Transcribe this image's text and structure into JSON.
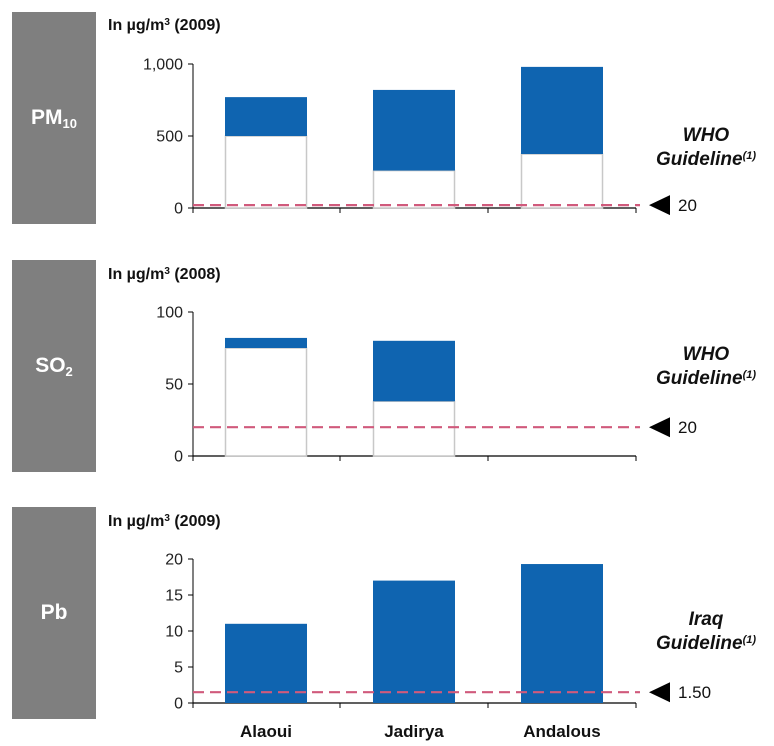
{
  "colors": {
    "bar": "#0f64b0",
    "ghost_outline": "#c8c8c8",
    "guideline": "#d05a7c",
    "side_box": "#7f7f7f",
    "axis": "#000000"
  },
  "chart_data": [
    {
      "type": "bar",
      "pollutant_main": "PM",
      "pollutant_sub": "10",
      "unit_prefix": "In µg/m",
      "unit_power": "3",
      "unit_year": " (2009)",
      "categories": [
        "Alaoui",
        "Jadirya",
        "Andalous"
      ],
      "ylim": [
        0,
        1000
      ],
      "yticks": [
        0,
        500,
        1000
      ],
      "ytick_labels": [
        "0",
        "500",
        "1,000"
      ],
      "ranges": [
        [
          500,
          770
        ],
        [
          260,
          820
        ],
        [
          375,
          980
        ]
      ],
      "guideline_value": 20,
      "guideline_label": "20",
      "guideline_title_line1": "WHO",
      "guideline_title_line2": "Guideline",
      "guideline_note": "(1)",
      "show_xlabels": false
    },
    {
      "type": "bar",
      "pollutant_main": "SO",
      "pollutant_sub": "2",
      "unit_prefix": "In µg/m",
      "unit_power": "3",
      "unit_year": " (2008)",
      "categories": [
        "Alaoui",
        "Jadirya",
        "Andalous"
      ],
      "ylim": [
        0,
        100
      ],
      "yticks": [
        0,
        50,
        100
      ],
      "ytick_labels": [
        "0",
        "50",
        "100"
      ],
      "ranges": [
        [
          75,
          82
        ],
        [
          38,
          80
        ],
        null
      ],
      "guideline_value": 20,
      "guideline_label": "20",
      "guideline_title_line1": "WHO",
      "guideline_title_line2": "Guideline",
      "guideline_note": "(1)",
      "show_xlabels": false
    },
    {
      "type": "bar",
      "pollutant_main": "Pb",
      "pollutant_sub": "",
      "unit_prefix": "In µg/m",
      "unit_power": "3",
      "unit_year": " (2009)",
      "categories": [
        "Alaoui",
        "Jadirya",
        "Andalous"
      ],
      "ylim": [
        0,
        20
      ],
      "yticks": [
        0,
        5,
        10,
        15,
        20
      ],
      "ytick_labels": [
        "0",
        "5",
        "10",
        "15",
        "20"
      ],
      "ranges": [
        [
          0,
          11
        ],
        [
          0,
          17
        ],
        [
          0,
          19.3
        ]
      ],
      "guideline_value": 1.5,
      "guideline_label": "1.50",
      "guideline_title_line1": "Iraq",
      "guideline_title_line2": "Guideline",
      "guideline_note": "(1)",
      "show_xlabels": true
    }
  ]
}
